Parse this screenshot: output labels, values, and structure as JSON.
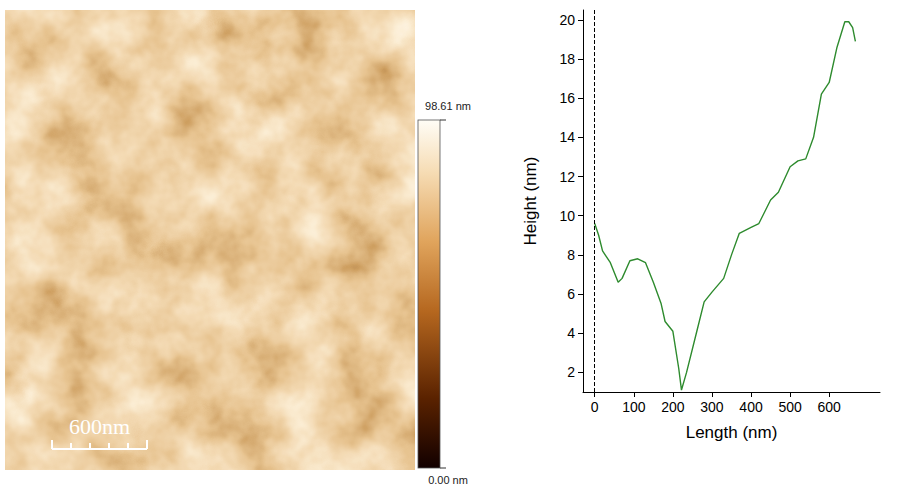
{
  "chart_data": {
    "type": "line",
    "x_label": "Length (nm)",
    "y_label": "Height (nm)",
    "x": [
      0,
      10,
      20,
      40,
      60,
      70,
      90,
      110,
      130,
      150,
      170,
      180,
      200,
      215,
      222,
      235,
      260,
      280,
      300,
      330,
      350,
      370,
      400,
      420,
      450,
      470,
      500,
      520,
      540,
      560,
      580,
      600,
      620,
      640,
      650,
      660,
      667
    ],
    "series": [
      {
        "color": "#2e8b2e",
        "line_style": "solid",
        "values": [
          9.6,
          9.0,
          8.2,
          7.6,
          6.6,
          6.8,
          7.7,
          7.8,
          7.6,
          6.6,
          5.5,
          4.6,
          4.1,
          2.2,
          1.1,
          2.0,
          4.0,
          5.6,
          6.1,
          6.8,
          8.0,
          9.1,
          9.4,
          9.6,
          10.8,
          11.2,
          12.5,
          12.8,
          12.9,
          14.0,
          16.2,
          16.8,
          18.6,
          19.9,
          19.9,
          19.6,
          18.9
        ]
      }
    ],
    "xlim": [
      -30,
      730
    ],
    "xticks": [
      0,
      100,
      200,
      300,
      400,
      500,
      600
    ],
    "ylim": [
      1,
      20.5
    ],
    "yticks": [
      2,
      4,
      6,
      8,
      10,
      12,
      14,
      16,
      18,
      20
    ],
    "reference_x": 0,
    "grid": false
  },
  "image": {
    "scale_bar": "600nm",
    "colorbar": {
      "range": [
        0,
        98.61
      ],
      "ticks": [
        {
          "value": 0,
          "label": "0.00 nm"
        },
        {
          "value": 98.61,
          "label": "98.61 nm"
        }
      ]
    }
  }
}
